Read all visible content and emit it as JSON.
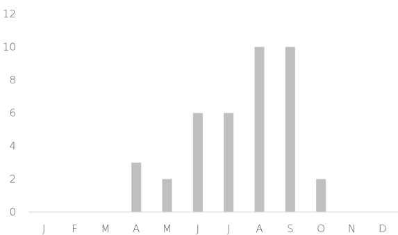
{
  "chart_data": {
    "type": "bar",
    "title": "",
    "xlabel": "",
    "ylabel": "",
    "categories": [
      "J",
      "F",
      "M",
      "A",
      "M",
      "J",
      "J",
      "A",
      "S",
      "O",
      "N",
      "D"
    ],
    "values": [
      0,
      0,
      0,
      3,
      2,
      6,
      6,
      10,
      10,
      2,
      0,
      0
    ],
    "ylim": [
      0,
      12
    ],
    "yticks": [
      "0",
      "2",
      "4",
      "6",
      "8",
      "10",
      "12"
    ],
    "grid": false,
    "legend": "none",
    "bar_color": "#bfbfbf",
    "axis_color": "#d9d9d9"
  }
}
